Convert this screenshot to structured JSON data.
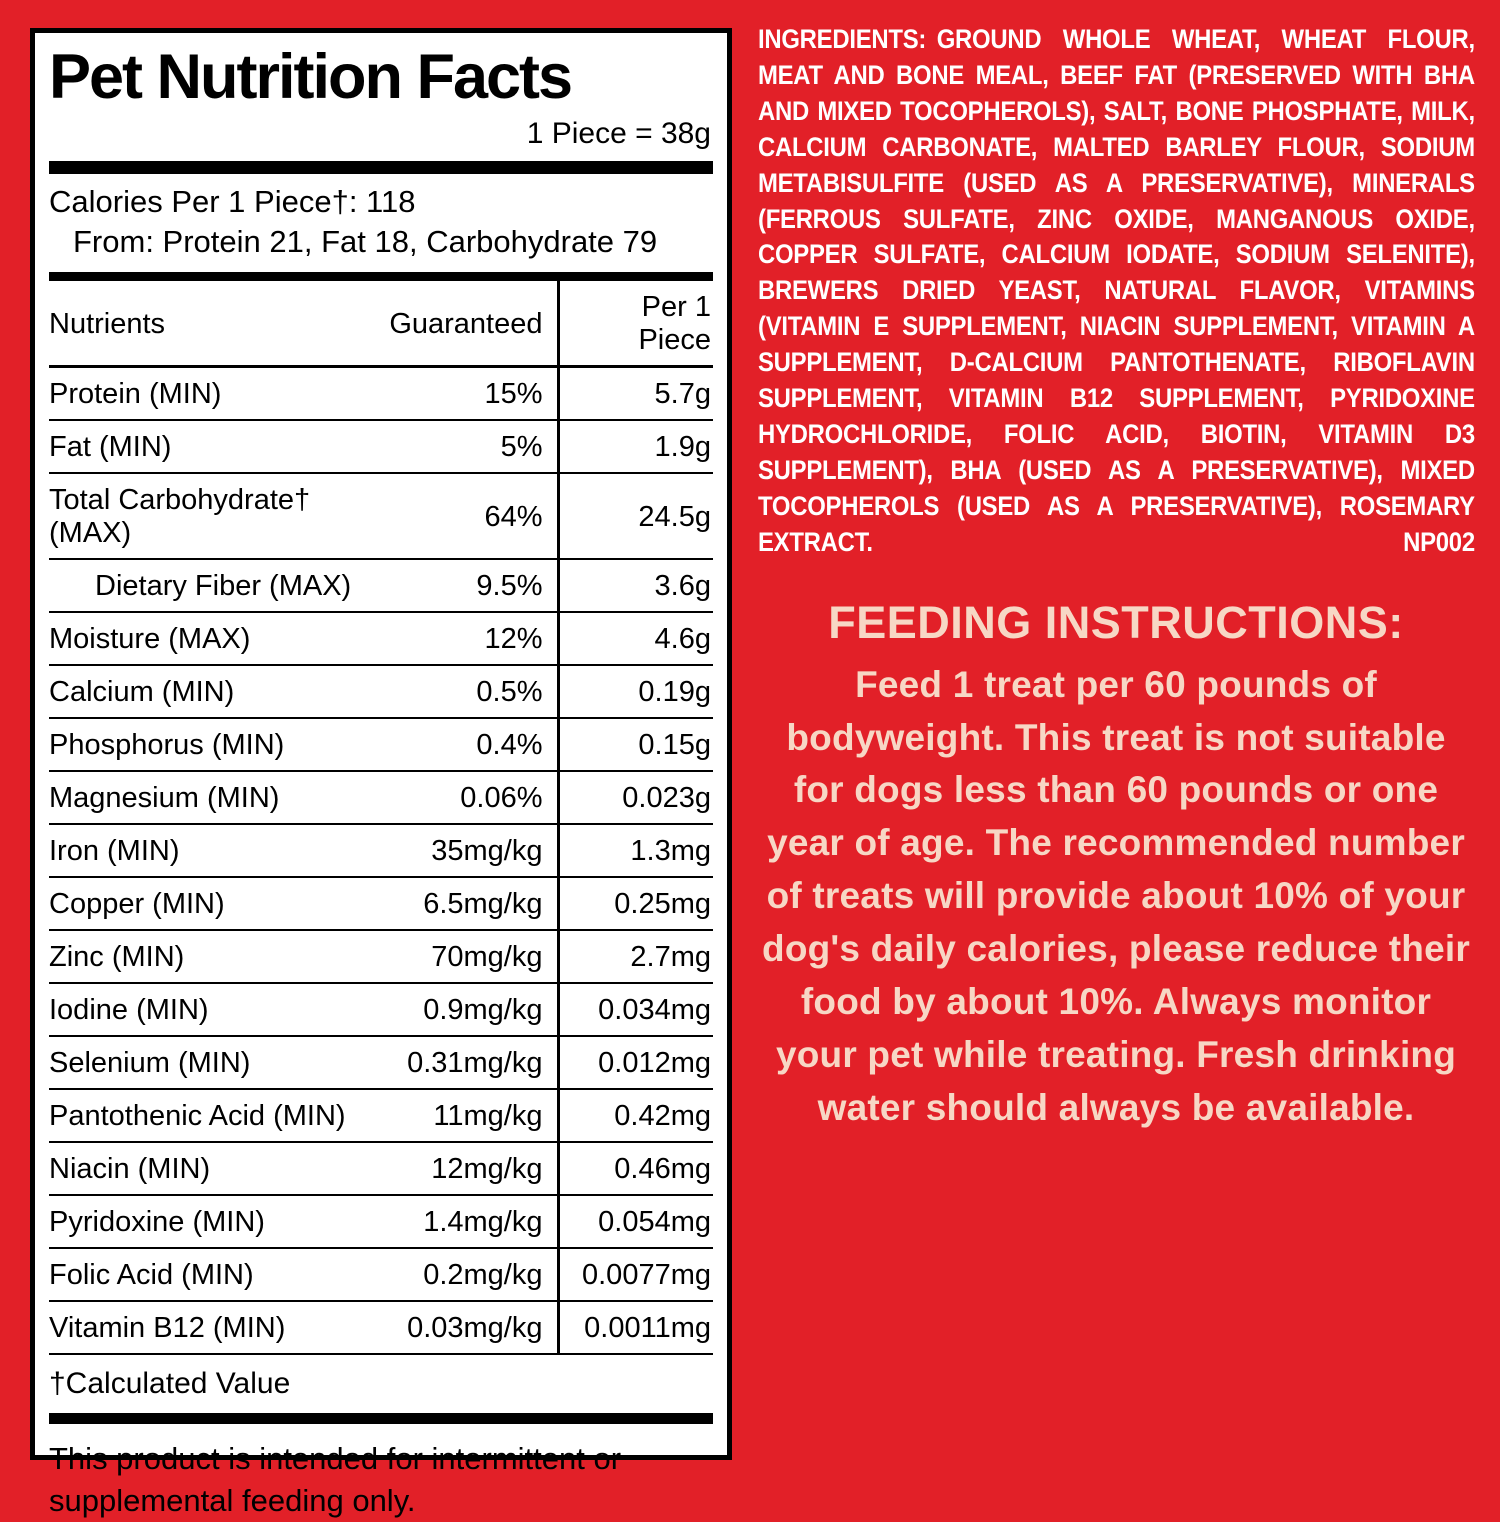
{
  "colors": {
    "background_red": "#E22028",
    "panel_background": "#FFFFFF",
    "panel_text": "#000000",
    "ingredients_text": "#FFFFFF",
    "feeding_text": "#F7D7C5"
  },
  "facts": {
    "title": "Pet Nutrition Facts",
    "serving": "1 Piece = 38g",
    "calories_line": "Calories Per 1 Piece†: 118",
    "calories_from": "From: Protein 21, Fat 18, Carbohydrate 79",
    "table": {
      "headers": [
        "Nutrients",
        "Guaranteed",
        "Per 1 Piece"
      ],
      "rows": [
        {
          "name": "Protein (MIN)",
          "guaranteed": "15%",
          "per": "5.7g",
          "indent": false
        },
        {
          "name": "Fat (MIN)",
          "guaranteed": "5%",
          "per": "1.9g",
          "indent": false
        },
        {
          "name": "Total Carbohydrate† (MAX)",
          "guaranteed": "64%",
          "per": "24.5g",
          "indent": false
        },
        {
          "name": "Dietary Fiber (MAX)",
          "guaranteed": "9.5%",
          "per": "3.6g",
          "indent": true
        },
        {
          "name": "Moisture (MAX)",
          "guaranteed": "12%",
          "per": "4.6g",
          "indent": false
        },
        {
          "name": "Calcium (MIN)",
          "guaranteed": "0.5%",
          "per": "0.19g",
          "indent": false
        },
        {
          "name": "Phosphorus (MIN)",
          "guaranteed": "0.4%",
          "per": "0.15g",
          "indent": false
        },
        {
          "name": "Magnesium (MIN)",
          "guaranteed": "0.06%",
          "per": "0.023g",
          "indent": false
        },
        {
          "name": "Iron (MIN)",
          "guaranteed": "35mg/kg",
          "per": "1.3mg",
          "indent": false
        },
        {
          "name": "Copper (MIN)",
          "guaranteed": "6.5mg/kg",
          "per": "0.25mg",
          "indent": false
        },
        {
          "name": "Zinc (MIN)",
          "guaranteed": "70mg/kg",
          "per": "2.7mg",
          "indent": false
        },
        {
          "name": "Iodine (MIN)",
          "guaranteed": "0.9mg/kg",
          "per": "0.034mg",
          "indent": false
        },
        {
          "name": "Selenium (MIN)",
          "guaranteed": "0.31mg/kg",
          "per": "0.012mg",
          "indent": false
        },
        {
          "name": "Pantothenic Acid (MIN)",
          "guaranteed": "11mg/kg",
          "per": "0.42mg",
          "indent": false
        },
        {
          "name": "Niacin (MIN)",
          "guaranteed": "12mg/kg",
          "per": "0.46mg",
          "indent": false
        },
        {
          "name": "Pyridoxine (MIN)",
          "guaranteed": "1.4mg/kg",
          "per": "0.054mg",
          "indent": false
        },
        {
          "name": "Folic Acid (MIN)",
          "guaranteed": "0.2mg/kg",
          "per": "0.0077mg",
          "indent": false
        },
        {
          "name": "Vitamin B12 (MIN)",
          "guaranteed": "0.03mg/kg",
          "per": "0.0011mg",
          "indent": false
        }
      ]
    },
    "footnote": "†Calculated Value",
    "intermittent_note": "This product is intended for intermittent or supplemental feeding only."
  },
  "ingredients": {
    "label": "INGREDIENTS:",
    "text": "GROUND WHOLE WHEAT, WHEAT FLOUR, MEAT AND BONE MEAL, BEEF FAT (PRESERVED WITH BHA AND MIXED TOCOPHEROLS), SALT, BONE PHOSPHATE, MILK, CALCIUM CARBONATE, MALTED BARLEY FLOUR, SODIUM METABISULFITE (USED AS A PRESERVATIVE), MINERALS (FERROUS SULFATE, ZINC OXIDE, MANGANOUS OXIDE, COPPER SULFATE, CALCIUM IODATE, SODIUM SELENITE), BREWERS DRIED YEAST, NATURAL FLAVOR, VITAMINS (VITAMIN E SUPPLEMENT, NIACIN SUPPLEMENT, VITAMIN A SUPPLEMENT, D-CALCIUM PANTOTHENATE, RIBOFLAVIN SUPPLEMENT, VITAMIN B12 SUPPLEMENT, PYRIDOXINE HYDROCHLORIDE, FOLIC ACID, BIOTIN, VITAMIN D3 SUPPLEMENT), BHA (USED AS A PRESERVATIVE), MIXED TOCOPHEROLS (USED AS A PRESERVATIVE), ROSEMARY EXTRACT.",
    "code": "NP002"
  },
  "feeding": {
    "title": "FEEDING INSTRUCTIONS:",
    "text": "Feed 1 treat per 60 pounds of bodyweight. This treat is not suitable for dogs less than 60 pounds or one year of age. The recommended number of treats will provide about 10% of your dog's daily calories, please reduce their food by about 10%. Always monitor your pet while treating. Fresh drinking water should always be available."
  }
}
